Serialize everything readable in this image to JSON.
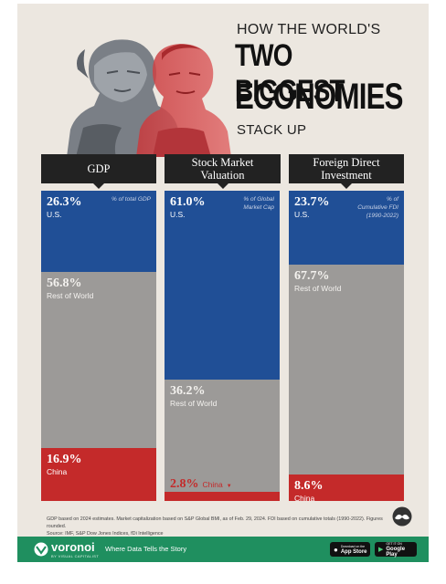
{
  "header": {
    "line1": "HOW THE WORLD'S",
    "line2": "TWO BIGGEST",
    "line3": "ECONOMIES",
    "line4": "STACK UP"
  },
  "colors": {
    "us": "#204f96",
    "rest": "#9c9a98",
    "china": "#c42a2a",
    "header": "#222222",
    "background": "#ece7e0",
    "footer": "#1f8f5f"
  },
  "chart_data": {
    "type": "bar",
    "stacked": true,
    "ylim": [
      0,
      100
    ],
    "panels": [
      {
        "header": "GDP",
        "note": "% of total GDP",
        "segments": [
          {
            "name": "U.S.",
            "value": 26.3,
            "label": "26.3%"
          },
          {
            "name": "Rest of World",
            "value": 56.8,
            "label": "56.8%"
          },
          {
            "name": "China",
            "value": 16.9,
            "label": "16.9%"
          }
        ]
      },
      {
        "header": "Stock Market Valuation",
        "note": "% of Global Market Cap",
        "segments": [
          {
            "name": "U.S.",
            "value": 61.0,
            "label": "61.0%"
          },
          {
            "name": "Rest of World",
            "value": 36.2,
            "label": "36.2%"
          },
          {
            "name": "China",
            "value": 2.8,
            "label": "2.8%"
          }
        ]
      },
      {
        "header": "Foreign Direct Investment",
        "note": "% of Cumulative FDI (1990-2022)",
        "segments": [
          {
            "name": "U.S.",
            "value": 23.7,
            "label": "23.7%"
          },
          {
            "name": "Rest of World",
            "value": 67.7,
            "label": "67.7%"
          },
          {
            "name": "China",
            "value": 8.6,
            "label": "8.6%"
          }
        ]
      }
    ]
  },
  "footnote": {
    "line1": "GDP based on 2024 estimates. Market capitalization based on S&P Global BMI, as of Feb. 29, 2024. FDI based on cumulative totals (1990-2022). Figures rounded.",
    "line2": "Source: IMF, S&P Dow Jones Indices, fDi Intelligence"
  },
  "footer": {
    "brand": "voronoi",
    "brand_sub": "BY VISUAL CAPITALIST",
    "tagline": "Where Data Tells the Story",
    "appstore_small": "Download on the",
    "appstore": "App Store",
    "googleplay_small": "GET IT ON",
    "googleplay": "Google Play"
  }
}
